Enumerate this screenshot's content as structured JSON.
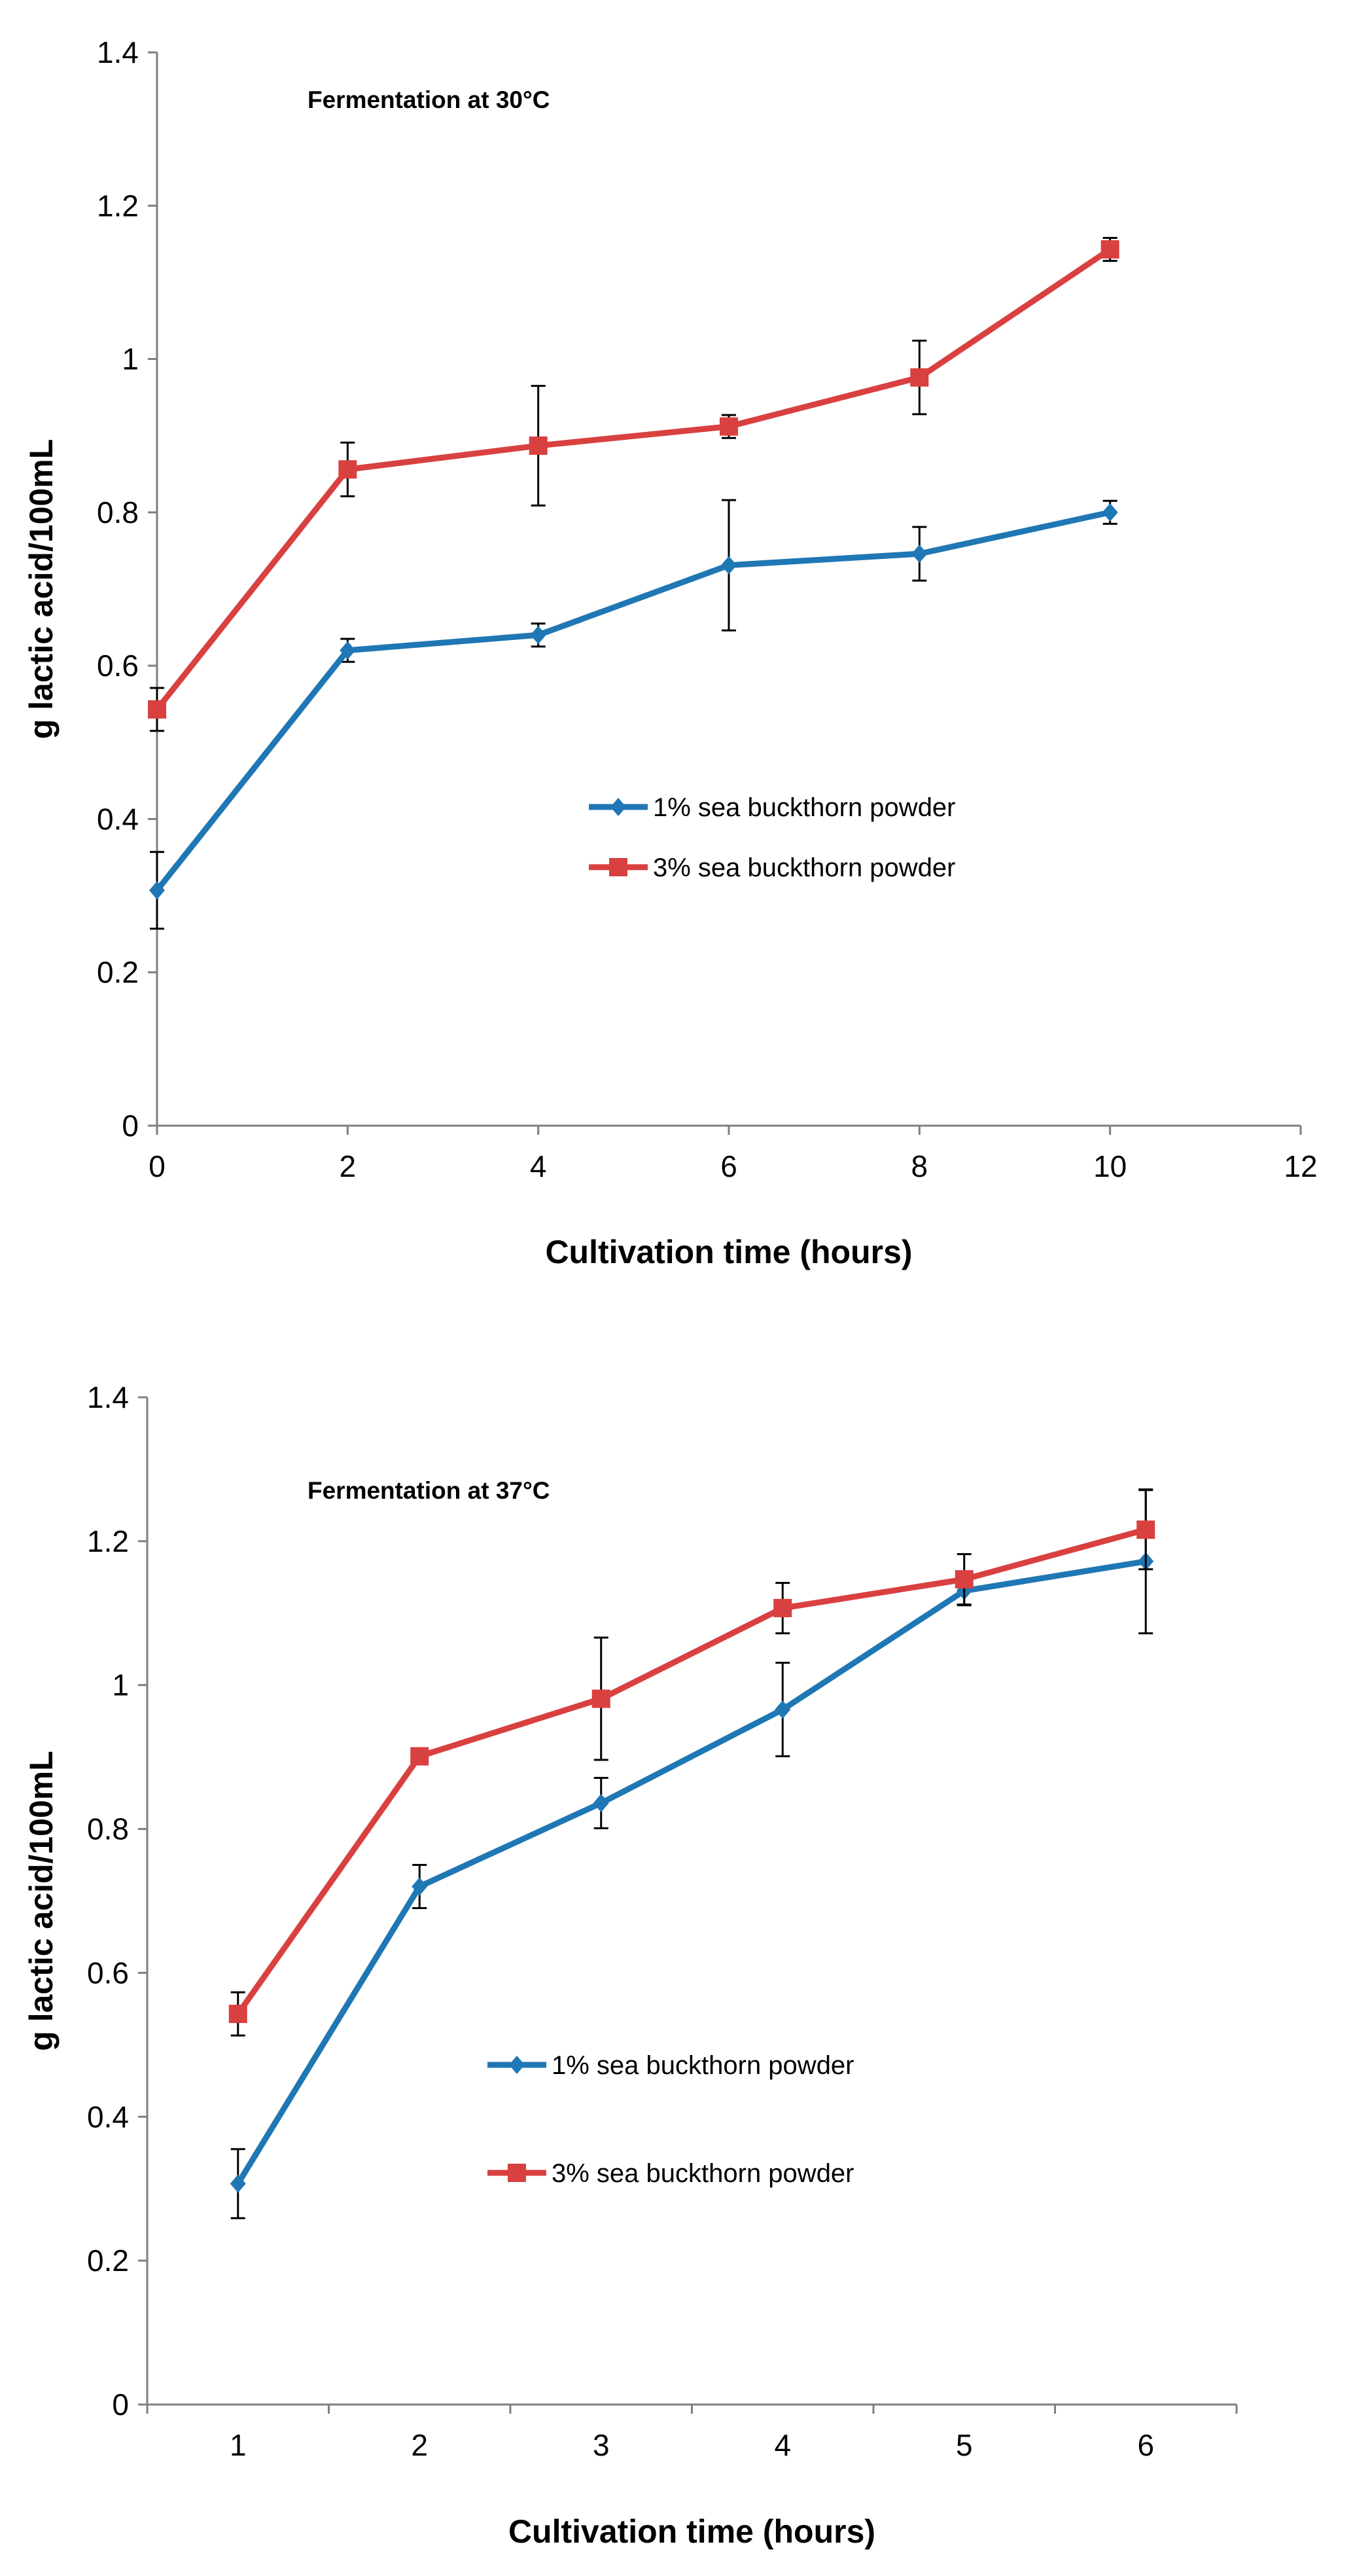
{
  "chart_data": [
    {
      "type": "line",
      "title": "Fermentation at 30°C",
      "xlabel": "Cultivation time (hours)",
      "ylabel": "g lactic acid/100mL",
      "xlim": [
        0,
        12
      ],
      "ylim": [
        0,
        1.4
      ],
      "xticks": [
        "0",
        "2",
        "4",
        "6",
        "8",
        "10",
        "12"
      ],
      "yticks": [
        "0",
        "0.2",
        "0.4",
        "0.6",
        "0.8",
        "1",
        "1.2",
        "1.4"
      ],
      "grid": false,
      "legend_position": "center-right",
      "x": [
        0,
        2,
        4,
        6,
        8,
        10
      ],
      "series": [
        {
          "name": "1% sea buckthorn powder",
          "color": "#1f77b4",
          "marker": "diamond",
          "values": [
            0.307,
            0.62,
            0.64,
            0.731,
            0.746,
            0.8
          ],
          "error": [
            0.05,
            0.015,
            0.015,
            0.085,
            0.035,
            0.015
          ]
        },
        {
          "name": "3% sea buckthorn powder",
          "color": "#d94040",
          "marker": "square",
          "values": [
            0.543,
            0.856,
            0.887,
            0.912,
            0.976,
            1.143
          ],
          "error": [
            0.028,
            0.035,
            0.078,
            0.015,
            0.048,
            0.015
          ]
        }
      ]
    },
    {
      "type": "line",
      "title": "Fermentation at 37°C",
      "xlabel": "Cultivation time (hours)",
      "ylabel": "g lactic acid/100mL",
      "ylim": [
        0,
        1.4
      ],
      "categories": [
        "1",
        "2",
        "3",
        "4",
        "5",
        "6"
      ],
      "yticks": [
        "0",
        "0.2",
        "0.4",
        "0.6",
        "0.8",
        "1",
        "1.2",
        "1.4"
      ],
      "grid": false,
      "legend_position": "center-right",
      "series": [
        {
          "name": "1% sea buckthorn powder",
          "color": "#1f77b4",
          "marker": "diamond",
          "values": [
            0.307,
            0.72,
            0.836,
            0.966,
            1.131,
            1.172
          ],
          "error": [
            0.048,
            0.03,
            0.035,
            0.065,
            0.02,
            0.1
          ]
        },
        {
          "name": "3% sea buckthorn powder",
          "color": "#d94040",
          "marker": "square",
          "values": [
            0.543,
            0.901,
            0.981,
            1.107,
            1.147,
            1.216
          ],
          "error": [
            0.03,
            0.0,
            0.085,
            0.035,
            0.035,
            0.055
          ]
        }
      ]
    }
  ]
}
